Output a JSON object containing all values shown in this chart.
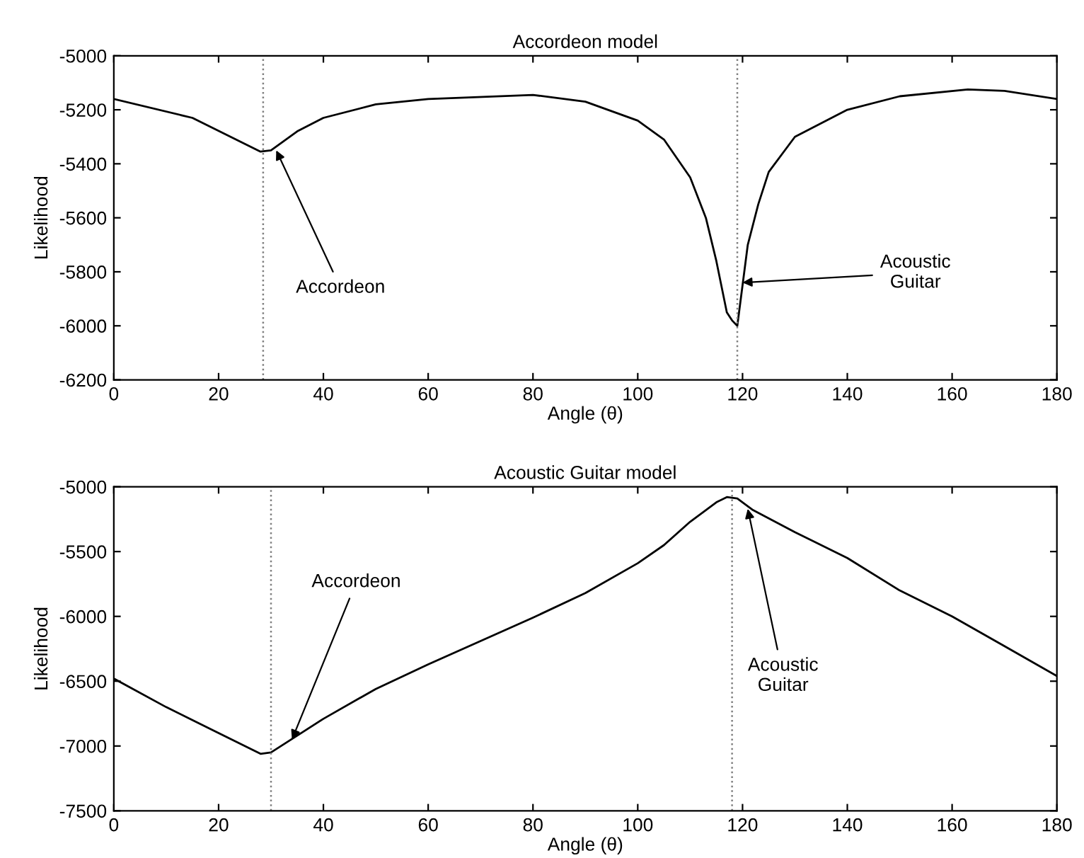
{
  "chart_data": [
    {
      "type": "line",
      "title": "Accordeon model",
      "xlabel": "Angle (θ)",
      "ylabel": "Likelihood",
      "xlim": [
        0,
        180
      ],
      "xticks": [
        0,
        20,
        40,
        60,
        80,
        100,
        120,
        140,
        160,
        180
      ],
      "ylim": [
        -6200,
        -5000
      ],
      "yticks": [
        -6200,
        -6000,
        -5800,
        -5600,
        -5400,
        -5200,
        -5000
      ],
      "grid": false,
      "legend": false,
      "series": [
        {
          "color": "#000000",
          "x": [
            0,
            15,
            28,
            30,
            35,
            40,
            50,
            60,
            80,
            90,
            100,
            105,
            110,
            113,
            115,
            117,
            118,
            119,
            120,
            121,
            123,
            125,
            130,
            140,
            150,
            163,
            170,
            180
          ],
          "values": [
            -5160,
            -5230,
            -5355,
            -5350,
            -5280,
            -5230,
            -5180,
            -5160,
            -5145,
            -5170,
            -5240,
            -5310,
            -5450,
            -5600,
            -5760,
            -5950,
            -5980,
            -6000,
            -5850,
            -5700,
            -5550,
            -5430,
            -5300,
            -5200,
            -5150,
            -5125,
            -5130,
            -5160
          ]
        }
      ],
      "ref_lines": [
        {
          "axis": "x",
          "value": 28.5,
          "color": "#808080",
          "line_style": "dotted"
        },
        {
          "axis": "x",
          "value": 119,
          "color": "#808080",
          "line_style": "dotted"
        }
      ],
      "annotations": [
        {
          "text": "Accordeon",
          "x": 31,
          "y": -5350
        },
        {
          "text": "Acoustic\nGuitar",
          "x": 120,
          "y": -5840
        }
      ]
    },
    {
      "type": "line",
      "title": "Acoustic Guitar model",
      "xlabel": "Angle (θ)",
      "ylabel": "Likelihood",
      "xlim": [
        0,
        180
      ],
      "xticks": [
        0,
        20,
        40,
        60,
        80,
        100,
        120,
        140,
        160,
        180
      ],
      "ylim": [
        -7500,
        -5000
      ],
      "yticks": [
        -7500,
        -7000,
        -6500,
        -6000,
        -5500,
        -5000
      ],
      "grid": false,
      "legend": false,
      "series": [
        {
          "color": "#000000",
          "x": [
            0,
            10,
            20,
            28,
            30,
            35,
            40,
            50,
            60,
            70,
            80,
            90,
            100,
            105,
            110,
            115,
            117,
            119,
            122,
            130,
            140,
            150,
            160,
            170,
            180
          ],
          "values": [
            -6480,
            -6700,
            -6900,
            -7060,
            -7050,
            -6920,
            -6790,
            -6560,
            -6370,
            -6190,
            -6010,
            -5820,
            -5590,
            -5450,
            -5270,
            -5120,
            -5080,
            -5090,
            -5180,
            -5350,
            -5550,
            -5800,
            -6000,
            -6230,
            -6460
          ]
        }
      ],
      "ref_lines": [
        {
          "axis": "x",
          "value": 30,
          "color": "#808080",
          "line_style": "dotted"
        },
        {
          "axis": "x",
          "value": 118,
          "color": "#808080",
          "line_style": "dotted"
        }
      ],
      "annotations": [
        {
          "text": "Accordeon",
          "x": 34,
          "y": -6950
        },
        {
          "text": "Acoustic\nGuitar",
          "x": 121,
          "y": -5170
        }
      ]
    }
  ]
}
